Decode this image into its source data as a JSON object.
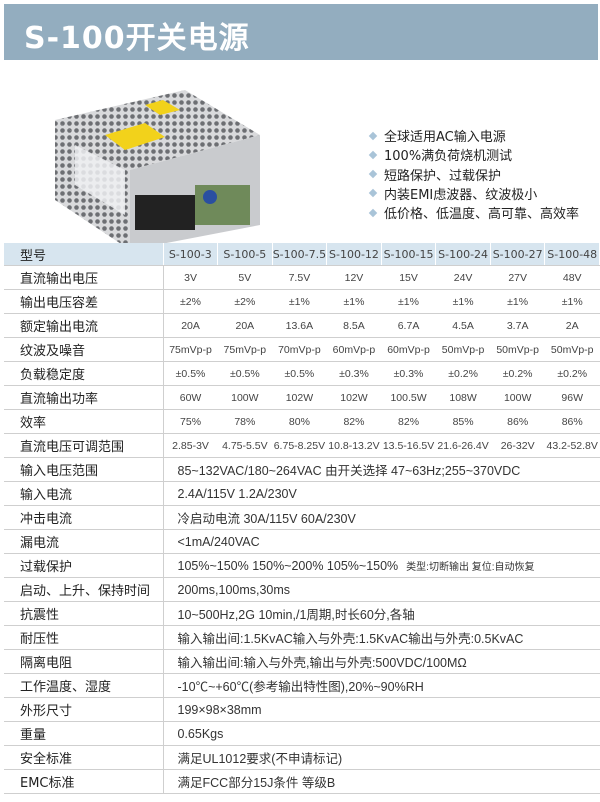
{
  "title": "S-100开关电源",
  "features": [
    "全球适用AC输入电源",
    "100%满负荷烧机测试",
    "短路保护、过载保护",
    "内装EMI虑波器、纹波极小",
    "低价格、低温度、高可靠、高效率"
  ],
  "colors": {
    "banner": "#93adbf",
    "header_row": "#d7e5ef",
    "bullet": "#a9c4d8"
  },
  "table": {
    "header_label": "型号",
    "models": [
      "S-100-3",
      "S-100-5",
      "S-100-7.5",
      "S-100-12",
      "S-100-15",
      "S-100-24",
      "S-100-27",
      "S-100-48"
    ],
    "rows": [
      {
        "label": "直流输出电压",
        "values": [
          "3V",
          "5V",
          "7.5V",
          "12V",
          "15V",
          "24V",
          "27V",
          "48V"
        ]
      },
      {
        "label": "输出电压容差",
        "values": [
          "±2%",
          "±2%",
          "±1%",
          "±1%",
          "±1%",
          "±1%",
          "±1%",
          "±1%"
        ]
      },
      {
        "label": "额定输出电流",
        "values": [
          "20A",
          "20A",
          "13.6A",
          "8.5A",
          "6.7A",
          "4.5A",
          "3.7A",
          "2A"
        ]
      },
      {
        "label": "纹波及噪音",
        "values": [
          "75mVp-p",
          "75mVp-p",
          "70mVp-p",
          "60mVp-p",
          "60mVp-p",
          "50mVp-p",
          "50mVp-p",
          "50mVp-p"
        ]
      },
      {
        "label": "负载稳定度",
        "values": [
          "±0.5%",
          "±0.5%",
          "±0.5%",
          "±0.3%",
          "±0.3%",
          "±0.2%",
          "±0.2%",
          "±0.2%"
        ]
      },
      {
        "label": "直流输出功率",
        "values": [
          "60W",
          "100W",
          "102W",
          "102W",
          "100.5W",
          "108W",
          "100W",
          "96W"
        ]
      },
      {
        "label": "效率",
        "values": [
          "75%",
          "78%",
          "80%",
          "82%",
          "82%",
          "85%",
          "86%",
          "86%"
        ]
      },
      {
        "label": "直流电压可调范围",
        "values": [
          "2.85-3V",
          "4.75-5.5V",
          "6.75-8.25V",
          "10.8-13.2V",
          "13.5-16.5V",
          "21.6-26.4V",
          "26-32V",
          "43.2-52.8V"
        ]
      }
    ],
    "specs": [
      {
        "label": "输入电压范围",
        "value": "85~132VAC/180~264VAC 由开关选择 47~63Hz;255~370VDC"
      },
      {
        "label": "输入电流",
        "value": "2.4A/115V 1.2A/230V"
      },
      {
        "label": "冲击电流",
        "value": "冷启动电流 30A/115V 60A/230V"
      },
      {
        "label": "漏电流",
        "value": "<1mA/240VAC"
      },
      {
        "label": "过载保护",
        "value": "105%~150%   150%~200%   105%~150%",
        "note": "类型:切断输出 复位:自动恢复"
      },
      {
        "label": "启动、上升、保持时间",
        "value": "200ms,100ms,30ms"
      },
      {
        "label": "抗震性",
        "value": "10~500Hz,2G 10min,/1周期,时长60分,各轴"
      },
      {
        "label": "耐压性",
        "value": "输入输出间:1.5KvAC输入与外壳:1.5KvAC输出与外壳:0.5KvAC"
      },
      {
        "label": "隔离电阻",
        "value": "输入输出间:输入与外壳,输出与外壳:500VDC/100MΩ"
      },
      {
        "label": "工作温度、湿度",
        "value": "-10℃~+60℃(参考输出特性图),20%~90%RH"
      },
      {
        "label": "外形尺寸",
        "value": "199×98×38mm"
      },
      {
        "label": "重量",
        "value": "0.65Kgs"
      },
      {
        "label": "安全标准",
        "value": "满足UL1012要求(不申请标记)"
      },
      {
        "label": "EMC标准",
        "value": "满足FCC部分15J条件 等级B"
      }
    ]
  }
}
